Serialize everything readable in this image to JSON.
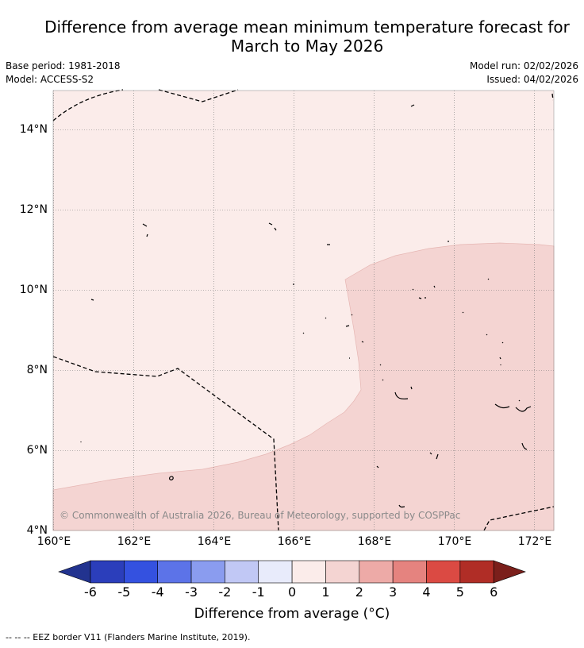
{
  "title_line1": "Difference from average mean minimum temperature forecast for",
  "title_line2": "March to May 2026",
  "base_period": "Base period: 1981-2018",
  "model": "Model: ACCESS-S2",
  "model_run": "Model run: 02/02/2026",
  "issued": "Issued: 04/02/2026",
  "copyright": "© Commonwealth of Australia 2026, Bureau of Meteorology, supported by COSPPac",
  "lat_ticks": [
    "14°N",
    "12°N",
    "10°N",
    "8°N",
    "6°N",
    "4°N"
  ],
  "lon_ticks": [
    "160°E",
    "162°E",
    "164°E",
    "166°E",
    "168°E",
    "170°E",
    "172°E"
  ],
  "colorbar": {
    "ticks": [
      "-6",
      "-5",
      "-4",
      "-3",
      "-2",
      "-1",
      "0",
      "1",
      "2",
      "3",
      "4",
      "5",
      "6"
    ],
    "colors": [
      "#22338f",
      "#2b3ebb",
      "#3451e0",
      "#5c73e8",
      "#8a9cef",
      "#c1c8f5",
      "#e8ebfb",
      "#fbecea",
      "#f4d4d2",
      "#edaaa7",
      "#e5837f",
      "#db4a43",
      "#b02d26",
      "#7b1f1b"
    ],
    "title": "Difference from average (°C)"
  },
  "legend_colors": {
    "zero_to_one": "#fbecea",
    "one_to_two": "#f4d4d2"
  },
  "footnote": "--  --  -- EEZ border V11 (Flanders Marine Institute, 2019)."
}
